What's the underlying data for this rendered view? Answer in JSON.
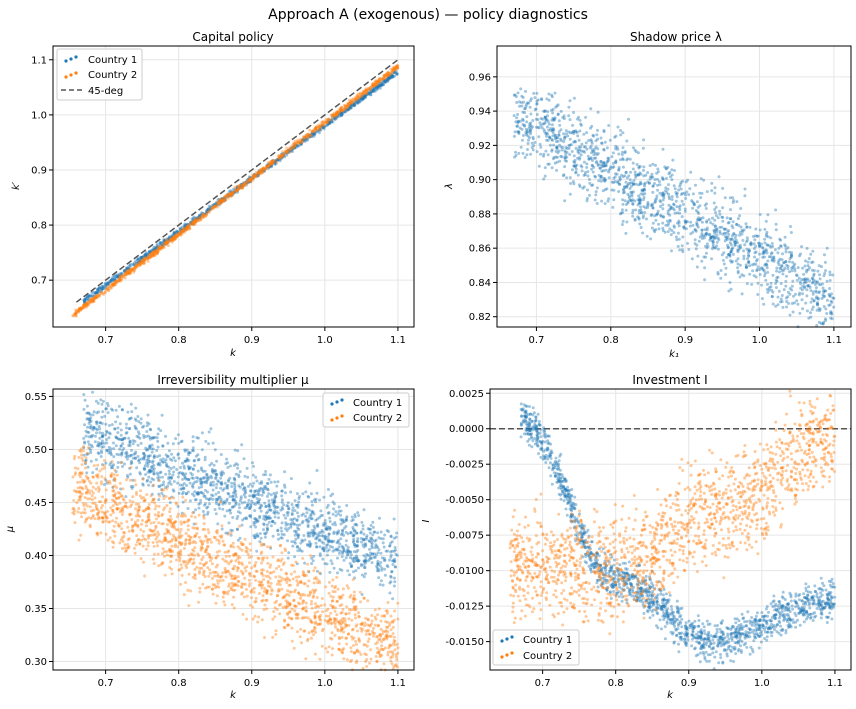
{
  "figure": {
    "title": "Approach A (exogenous) — policy diagnostics"
  },
  "colors": {
    "country1": "#1f77b4",
    "country2": "#ff7f0e",
    "ref": "#555555",
    "grid": "#e6e6e6"
  },
  "chart_data": [
    {
      "type": "scatter",
      "title": "Capital policy",
      "xlabel": "k",
      "ylabel": "k′",
      "xlim": [
        0.628,
        1.122
      ],
      "ylim": [
        0.615,
        1.125
      ],
      "xticks": [
        "0.7",
        "0.8",
        "0.9",
        "1.0",
        "1.1"
      ],
      "yticks": [
        "0.7",
        "0.8",
        "0.9",
        "1.0",
        "1.1"
      ],
      "grid": true,
      "legend_position": "upper-left",
      "legend": [
        "Country 1",
        "Country 2",
        "45-deg"
      ],
      "series": [
        {
          "name": "Country 1",
          "kind": "points",
          "x_range": [
            0.67,
            1.1
          ],
          "trend_y_at_ends": [
            0.662,
            1.078
          ]
        },
        {
          "name": "Country 2",
          "kind": "points",
          "x_range": [
            0.655,
            1.1
          ],
          "trend_y_at_ends": [
            0.636,
            1.088
          ]
        },
        {
          "name": "45-deg",
          "kind": "line",
          "x": [
            0.66,
            1.1
          ],
          "y": [
            0.66,
            1.1
          ]
        }
      ]
    },
    {
      "type": "scatter",
      "title": "Shadow price λ",
      "xlabel": "k₁",
      "ylabel": "λ",
      "xlim": [
        0.647,
        1.123
      ],
      "ylim": [
        0.814,
        0.978
      ],
      "xticks": [
        "0.7",
        "0.8",
        "0.9",
        "1.0",
        "1.1"
      ],
      "yticks": [
        "0.82",
        "0.84",
        "0.86",
        "0.88",
        "0.90",
        "0.92",
        "0.94",
        "0.96"
      ],
      "grid": true,
      "legend_position": "none",
      "series": [
        {
          "name": "",
          "kind": "points",
          "x_range": [
            0.67,
            1.1
          ],
          "trend_y_at_ends": [
            0.938,
            0.83
          ],
          "spread": 0.012
        }
      ]
    },
    {
      "type": "scatter",
      "title": "Irreversibility multiplier μ",
      "xlabel": "k",
      "ylabel": "μ",
      "xlim": [
        0.628,
        1.122
      ],
      "ylim": [
        0.292,
        0.557
      ],
      "xticks": [
        "0.7",
        "0.8",
        "0.9",
        "1.0",
        "1.1"
      ],
      "yticks": [
        "0.30",
        "0.35",
        "0.40",
        "0.45",
        "0.50",
        "0.55"
      ],
      "grid": true,
      "legend_position": "upper-right",
      "legend": [
        "Country 1",
        "Country 2"
      ],
      "series": [
        {
          "name": "Country 1",
          "kind": "points",
          "x_range": [
            0.67,
            1.1
          ],
          "trend_y_at_ends": [
            0.52,
            0.392
          ],
          "spread": 0.018
        },
        {
          "name": "Country 2",
          "kind": "points",
          "x_range": [
            0.655,
            1.1
          ],
          "trend_y_at_ends": [
            0.465,
            0.312
          ],
          "spread": 0.02
        }
      ]
    },
    {
      "type": "scatter",
      "title": "Investment I",
      "xlabel": "k",
      "ylabel": "I",
      "xlim": [
        0.628,
        1.122
      ],
      "ylim": [
        -0.017,
        0.0028
      ],
      "xticks": [
        "0.7",
        "0.8",
        "0.9",
        "1.0",
        "1.1"
      ],
      "yticks": [
        "0.0025",
        "0.0000",
        "-0.0025",
        "-0.0050",
        "-0.0075",
        "-0.0100",
        "-0.0125",
        "-0.0150"
      ],
      "grid": true,
      "legend_position": "lower-left",
      "legend": [
        "Country 1",
        "Country 2"
      ],
      "hline": 0.0,
      "series": [
        {
          "name": "Country 1",
          "kind": "points",
          "x_range": [
            0.67,
            1.1
          ],
          "shape": "U",
          "y_at": {
            "0.67": 0.0005,
            "0.80": -0.0105,
            "0.93": -0.015,
            "1.10": -0.012
          }
        },
        {
          "name": "Country 2",
          "kind": "points",
          "x_range": [
            0.655,
            1.1
          ],
          "shape": "rising",
          "y_at": {
            "0.66": -0.0095,
            "0.80": -0.01,
            "0.95": -0.0055,
            "1.10": -0.0005
          }
        }
      ]
    }
  ]
}
